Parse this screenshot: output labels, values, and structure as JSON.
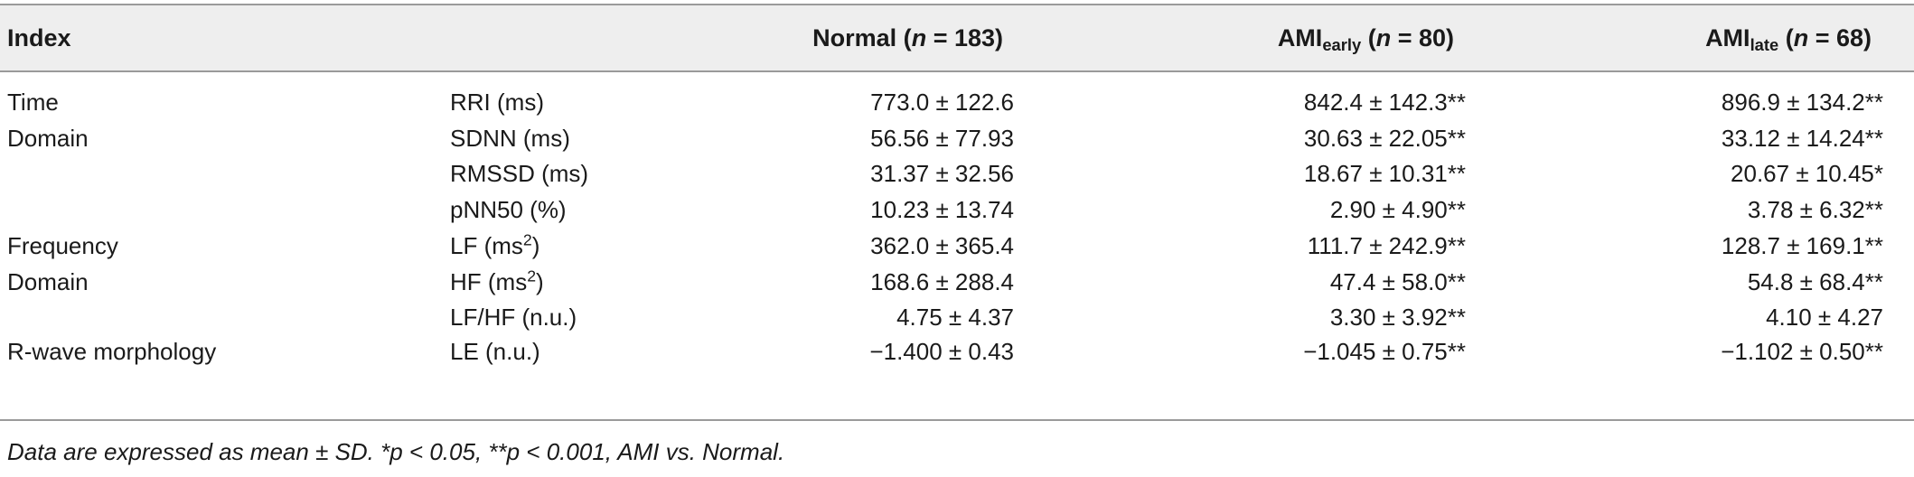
{
  "header": {
    "index": "Index",
    "normal": {
      "label": "Normal (",
      "n": "n",
      "rest": " = 183)"
    },
    "early": {
      "label": "AMI",
      "sub": "early",
      "open": " (",
      "n": "n",
      "rest": " = 80)"
    },
    "late": {
      "label": "AMI",
      "sub": "late",
      "open": " (",
      "n": "n",
      "rest": " = 68)"
    }
  },
  "rows": [
    {
      "group": "Time",
      "metric": "RRI (ms)",
      "normal": "773.0 ± 122.6",
      "early": "842.4 ± 142.3**",
      "late": "896.9 ± 134.2**"
    },
    {
      "group": "Domain",
      "metric": "SDNN (ms)",
      "normal": "56.56 ± 77.93",
      "early": "30.63 ± 22.05**",
      "late": "33.12 ± 14.24**"
    },
    {
      "group": "",
      "metric": "RMSSD (ms)",
      "normal": "31.37 ± 32.56",
      "early": "18.67 ± 10.31**",
      "late": "20.67 ± 10.45*"
    },
    {
      "group": "",
      "metric": "pNN50 (%)",
      "normal": "10.23 ± 13.74",
      "early": "2.90 ± 4.90**",
      "late": "3.78 ± 6.32**"
    },
    {
      "group": "Frequency",
      "metric": "LF (ms",
      "metric_sup": "2",
      "metric_end": ")",
      "normal": "362.0 ± 365.4",
      "early": "111.7 ± 242.9**",
      "late": "128.7 ± 169.1**"
    },
    {
      "group": "Domain",
      "metric": "HF (ms",
      "metric_sup": "2",
      "metric_end": ")",
      "normal": "168.6 ± 288.4",
      "early": "47.4 ± 58.0**",
      "late": "54.8 ± 68.4**"
    },
    {
      "group": "",
      "metric": "LF/HF (n.u.)",
      "normal": "4.75 ± 4.37",
      "early": "3.30 ± 3.92**",
      "late": "4.10 ± 4.27"
    },
    {
      "group": "R-wave morphology",
      "metric": "LE (n.u.)",
      "normal": "−1.400 ± 0.43",
      "early": "−1.045 ± 0.75**",
      "late": "−1.102 ± 0.50**"
    }
  ],
  "footnote": "Data are expressed as mean ± SD. *p < 0.05, **p < 0.001, AMI vs. Normal."
}
